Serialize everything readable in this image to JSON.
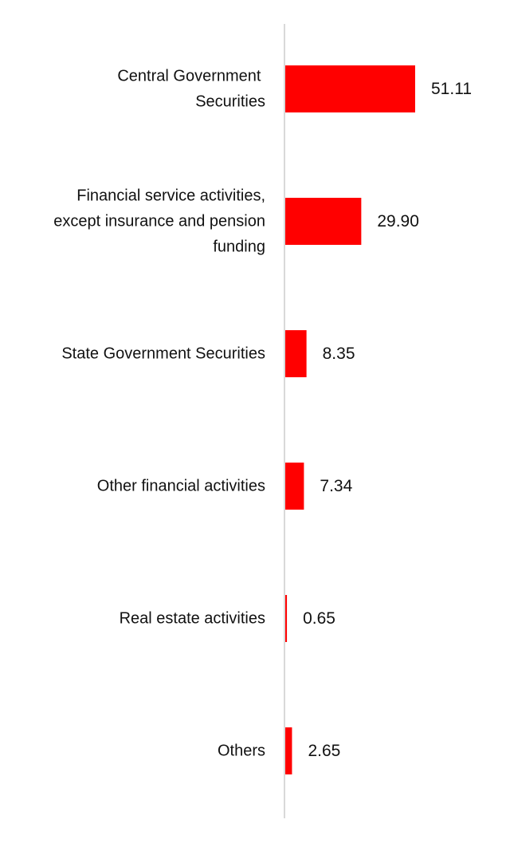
{
  "chart_data": {
    "type": "bar",
    "orientation": "horizontal",
    "categories": [
      [
        "Central Government ",
        "Securities"
      ],
      [
        "Financial service activities,",
        "except insurance and pension",
        "funding"
      ],
      [
        "State Government Securities"
      ],
      [
        "Other financial activities"
      ],
      [
        "Real estate activities"
      ],
      [
        "Others"
      ]
    ],
    "values": [
      51.11,
      29.9,
      8.35,
      7.34,
      0.65,
      2.65
    ],
    "value_labels": [
      "51.11",
      "29.90",
      "8.35",
      "7.34",
      "0.65",
      "2.65"
    ],
    "bar_color": "#ff0000",
    "axis_color": "#d9d9d9",
    "grid": false,
    "legend": "none"
  }
}
